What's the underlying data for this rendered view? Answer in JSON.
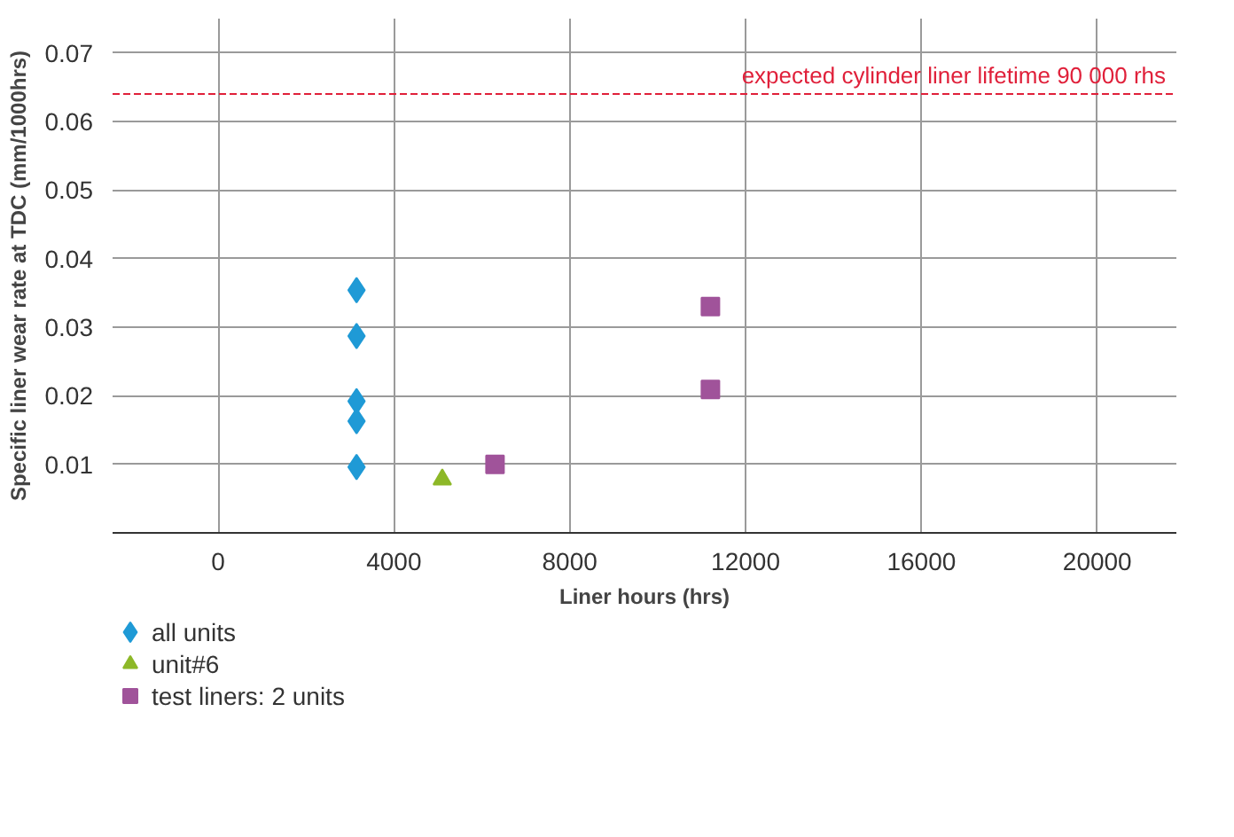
{
  "chart_data": {
    "type": "scatter",
    "xlabel": "Liner hours (hrs)",
    "ylabel": "Specific liner wear rate at TDC (mm/1000hrs)",
    "xlim": [
      -2400,
      21800
    ],
    "ylim": [
      0,
      0.075
    ],
    "xticks": [
      0,
      4000,
      8000,
      12000,
      16000,
      20000
    ],
    "yticks": [
      {
        "value": 0,
        "label": null
      },
      0.01,
      0.02,
      0.03,
      0.04,
      0.05,
      0.06,
      0.07
    ],
    "grid": true,
    "legend": "bottom left",
    "series": [
      {
        "name": "all units",
        "color": "#1f9ad6",
        "marker": "diamond",
        "x": [
          3150,
          3150,
          3150,
          3150,
          3150
        ],
        "values": [
          0.0354,
          0.0287,
          0.0192,
          0.0163,
          0.0096
        ]
      },
      {
        "name": "unit#6",
        "color": "#8db828",
        "marker": "triangle",
        "x": [
          5100
        ],
        "values": [
          0.0078
        ]
      },
      {
        "name": "test liners: 2 units",
        "color": "#a0539a",
        "marker": "square",
        "x": [
          6300,
          11200,
          11200
        ],
        "values": [
          0.01,
          0.033,
          0.0209
        ]
      }
    ],
    "ref_lines": [
      {
        "axis": "y",
        "value": 0.064,
        "label": "expected cylinder liner lifetime 90 000 rhs",
        "color": "#e0203a",
        "line_style": "dashed"
      }
    ]
  }
}
